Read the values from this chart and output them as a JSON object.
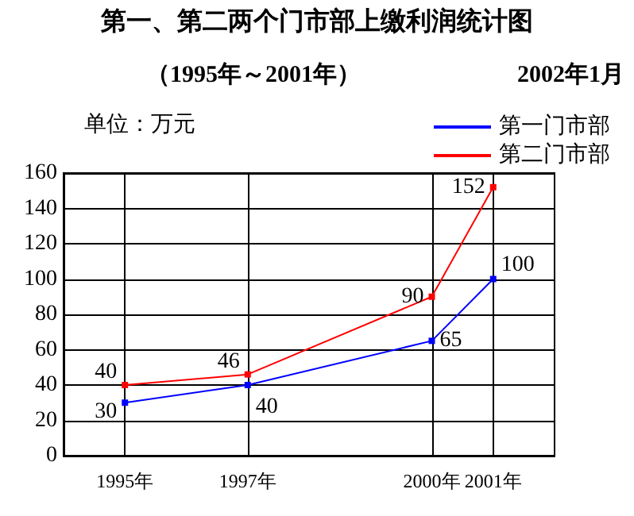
{
  "chart_data": {
    "type": "line",
    "title": "第一、第二两个门市部上缴利润统计图",
    "subtitle": "（1995年～2001年）",
    "annotations": [
      "2002年1月"
    ],
    "ylabel": "单位：万元",
    "x": [
      1995,
      1997,
      2000,
      2001
    ],
    "series": [
      {
        "name": "第一门市部",
        "color": "#0000ff",
        "values": [
          30,
          40,
          65,
          100
        ]
      },
      {
        "name": "第二门市部",
        "color": "#ff0000",
        "values": [
          40,
          46,
          90,
          152
        ]
      }
    ],
    "xlim": [
      1994,
      2002
    ],
    "xticks": [
      {
        "value": 1995,
        "label": "1995年"
      },
      {
        "value": 1997,
        "label": "1997年"
      },
      {
        "value": 2000,
        "label": "2000年"
      },
      {
        "value": 2001,
        "label": "2001年"
      }
    ],
    "ylim": [
      0,
      160
    ],
    "yticks": [
      0,
      20,
      40,
      60,
      80,
      100,
      120,
      140,
      160
    ],
    "grid": true,
    "legend": "top right",
    "data_labels": true,
    "marker": "square",
    "line_style": "solid"
  }
}
